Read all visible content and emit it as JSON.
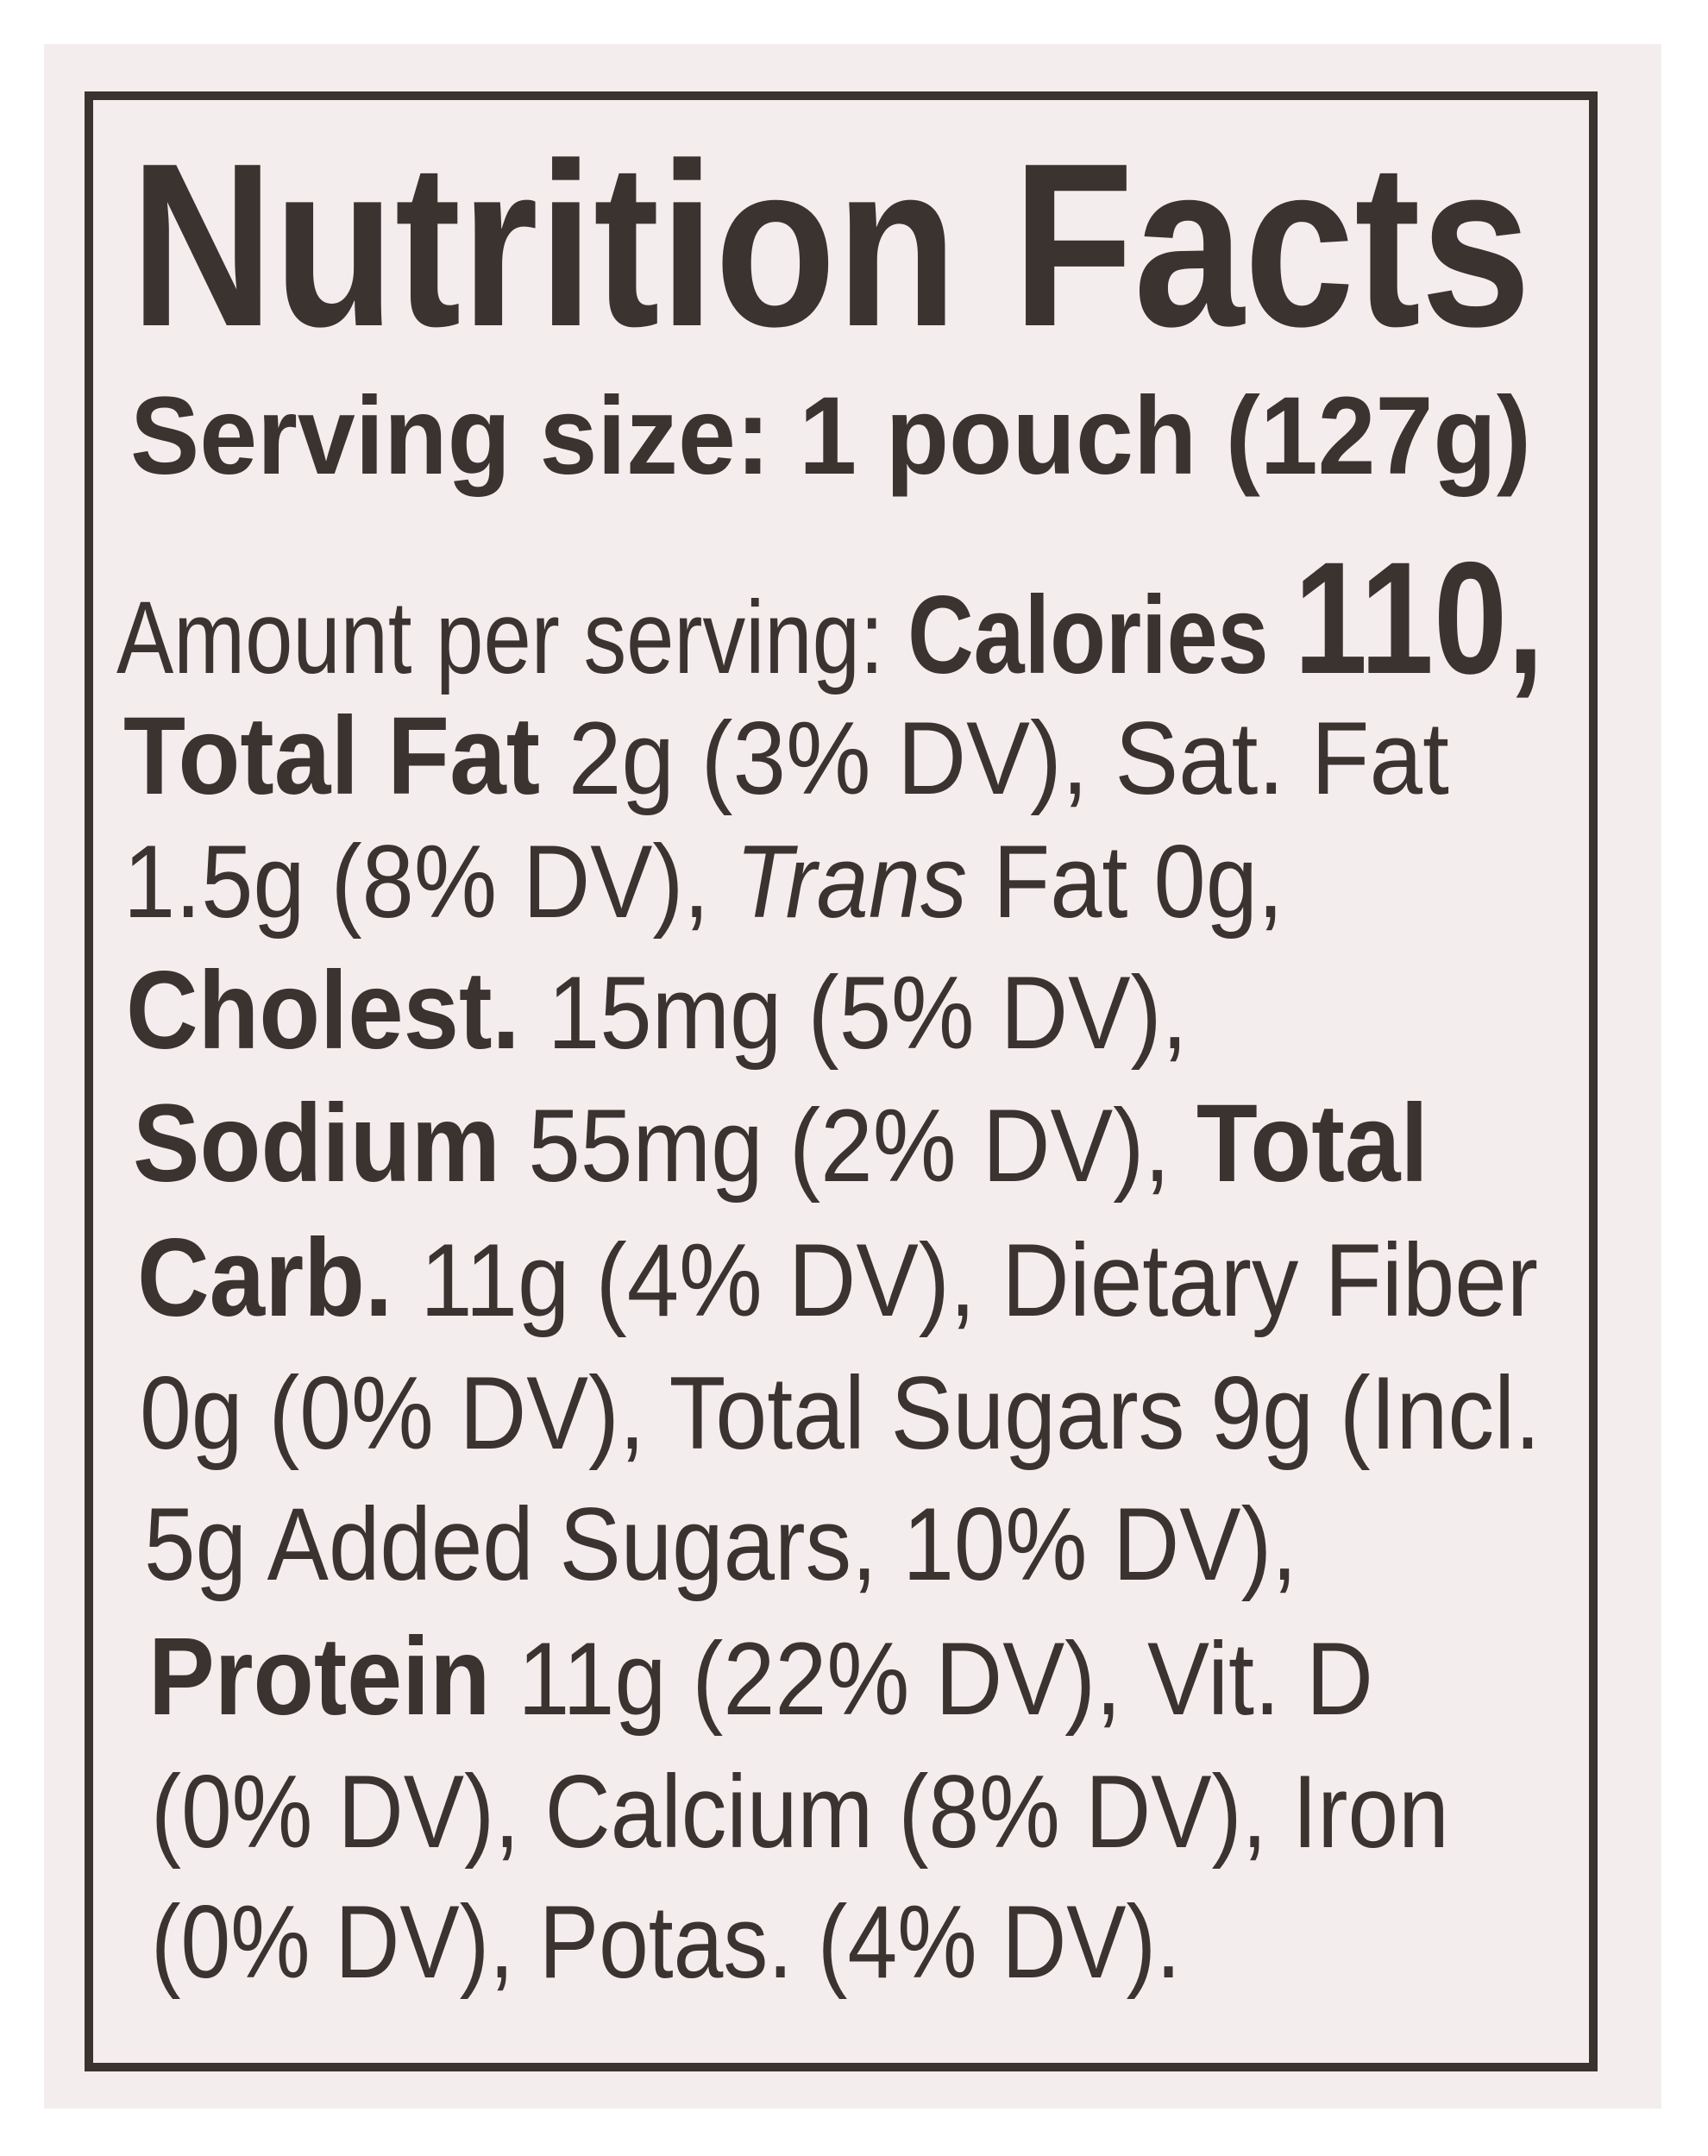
{
  "label": {
    "title": "Nutrition Facts",
    "serving_size": "Serving size: 1 pouch (127g)",
    "lines": [
      [
        {
          "text": "Amount per serving: ",
          "style": "regular"
        },
        {
          "text": "Calories ",
          "style": "bold"
        },
        {
          "text": "110,",
          "style": "large"
        }
      ],
      [
        {
          "text": "Total Fat ",
          "style": "bold"
        },
        {
          "text": "2g (3% DV), Sat. Fat",
          "style": "regular"
        }
      ],
      [
        {
          "text": "1.5g (8% DV), ",
          "style": "regular"
        },
        {
          "text": "Trans",
          "style": "italic"
        },
        {
          "text": " Fat 0g,",
          "style": "regular"
        }
      ],
      [
        {
          "text": "Cholest. ",
          "style": "bold"
        },
        {
          "text": "15mg (5% DV),",
          "style": "regular"
        }
      ],
      [
        {
          "text": "Sodium ",
          "style": "bold"
        },
        {
          "text": "55mg (2% DV), ",
          "style": "regular"
        },
        {
          "text": "Total",
          "style": "bold"
        }
      ],
      [
        {
          "text": "Carb. ",
          "style": "bold"
        },
        {
          "text": "11g (4% DV), Dietary Fiber",
          "style": "regular"
        }
      ],
      [
        {
          "text": "0g (0% DV), Total Sugars 9g (Incl.",
          "style": "regular"
        }
      ],
      [
        {
          "text": "5g Added Sugars, 10% DV),",
          "style": "regular"
        }
      ],
      [
        {
          "text": "Protein ",
          "style": "bold"
        },
        {
          "text": "11g (22% DV), Vit. D",
          "style": "regular"
        }
      ],
      [
        {
          "text": "(0% DV), Calcium (8% DV), Iron",
          "style": "regular"
        }
      ],
      [
        {
          "text": "(0% DV), Potas. (4% DV).",
          "style": "regular"
        }
      ]
    ]
  }
}
